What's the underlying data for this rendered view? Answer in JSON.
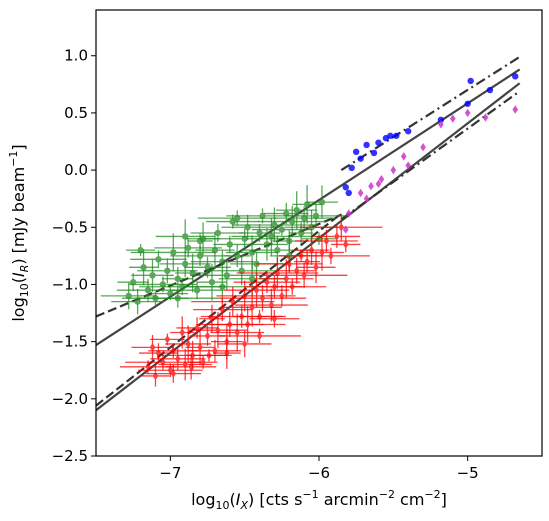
{
  "chart_data": {
    "type": "scatter",
    "xlabel": "log₁₀(I_X) [cts s⁻¹ arcmin⁻² cm⁻²]",
    "ylabel": "log₁₀(I_R) [mJy beam⁻¹]",
    "xlim": [
      -7.5,
      -4.5
    ],
    "ylim": [
      -2.5,
      1.4
    ],
    "x_ticks": [
      -7,
      -6,
      -5
    ],
    "x_tick_labels": [
      "−7",
      "−6",
      "−5"
    ],
    "y_ticks": [
      -2.5,
      -2.0,
      -1.5,
      -1.0,
      -0.5,
      0.0,
      0.5,
      1.0
    ],
    "y_tick_labels": [
      "−2.5",
      "−2.0",
      "−1.5",
      "−1.0",
      "−0.5",
      "0.0",
      "0.5",
      "1.0"
    ],
    "grid": false,
    "series": [
      {
        "color": "#228b22",
        "marker": "circle",
        "alpha": 0.75,
        "errorbars": true,
        "points": [
          [
            -7.28,
            -1.1
          ],
          [
            -7.25,
            -0.98
          ],
          [
            -7.22,
            -1.15
          ],
          [
            -7.18,
            -0.85
          ],
          [
            -7.15,
            -1.05
          ],
          [
            -7.12,
            -0.92
          ],
          [
            -7.1,
            -1.12
          ],
          [
            -7.08,
            -0.78
          ],
          [
            -7.05,
            -1.0
          ],
          [
            -7.02,
            -0.88
          ],
          [
            -7.0,
            -1.08
          ],
          [
            -6.98,
            -0.72
          ],
          [
            -6.95,
            -0.95
          ],
          [
            -6.92,
            -1.02
          ],
          [
            -6.9,
            -0.82
          ],
          [
            -6.88,
            -0.68
          ],
          [
            -6.85,
            -0.9
          ],
          [
            -6.82,
            -1.05
          ],
          [
            -6.8,
            -0.75
          ],
          [
            -6.78,
            -0.6
          ],
          [
            -6.75,
            -0.85
          ],
          [
            -6.72,
            -0.98
          ],
          [
            -6.7,
            -0.7
          ],
          [
            -6.68,
            -0.55
          ],
          [
            -6.65,
            -0.8
          ],
          [
            -6.62,
            -0.92
          ],
          [
            -6.6,
            -0.65
          ],
          [
            -6.58,
            -0.45
          ],
          [
            -6.55,
            -0.75
          ],
          [
            -6.52,
            -0.88
          ],
          [
            -6.5,
            -0.6
          ],
          [
            -6.48,
            -0.5
          ],
          [
            -6.45,
            -0.72
          ],
          [
            -6.42,
            -0.82
          ],
          [
            -6.4,
            -0.55
          ],
          [
            -6.38,
            -0.4
          ],
          [
            -6.35,
            -0.65
          ],
          [
            -6.32,
            -0.58
          ],
          [
            -6.3,
            -0.48
          ],
          [
            -6.28,
            -0.7
          ],
          [
            -6.25,
            -0.52
          ],
          [
            -6.22,
            -0.38
          ],
          [
            -6.2,
            -0.62
          ],
          [
            -6.18,
            -0.45
          ],
          [
            -6.15,
            -0.35
          ],
          [
            -6.12,
            -0.55
          ],
          [
            -6.1,
            -0.42
          ],
          [
            -6.08,
            -0.3
          ],
          [
            -6.05,
            -0.5
          ],
          [
            -6.02,
            -0.4
          ],
          [
            -5.98,
            -0.28
          ],
          [
            -6.95,
            -1.12
          ],
          [
            -6.8,
            -0.62
          ],
          [
            -6.65,
            -1.02
          ],
          [
            -6.45,
            -0.95
          ],
          [
            -6.2,
            -0.75
          ],
          [
            -6.0,
            -0.6
          ],
          [
            -7.2,
            -0.7
          ],
          [
            -6.9,
            -0.58
          ],
          [
            -6.55,
            -0.42
          ]
        ]
      },
      {
        "color": "#ff0000",
        "marker": "diamond",
        "alpha": 0.75,
        "errorbars": true,
        "points": [
          [
            -7.15,
            -1.72
          ],
          [
            -7.12,
            -1.55
          ],
          [
            -7.1,
            -1.8
          ],
          [
            -7.08,
            -1.6
          ],
          [
            -7.05,
            -1.68
          ],
          [
            -7.02,
            -1.48
          ],
          [
            -7.0,
            -1.75
          ],
          [
            -6.98,
            -1.58
          ],
          [
            -6.95,
            -1.65
          ],
          [
            -6.92,
            -1.42
          ],
          [
            -6.9,
            -1.7
          ],
          [
            -6.88,
            -1.52
          ],
          [
            -6.85,
            -1.62
          ],
          [
            -6.82,
            -1.38
          ],
          [
            -6.8,
            -1.55
          ],
          [
            -6.78,
            -1.68
          ],
          [
            -6.75,
            -1.45
          ],
          [
            -6.72,
            -1.3
          ],
          [
            -6.7,
            -1.58
          ],
          [
            -6.68,
            -1.4
          ],
          [
            -6.65,
            -1.22
          ],
          [
            -6.62,
            -1.5
          ],
          [
            -6.6,
            -1.35
          ],
          [
            -6.58,
            -1.15
          ],
          [
            -6.55,
            -1.42
          ],
          [
            -6.52,
            -1.28
          ],
          [
            -6.5,
            -1.1
          ],
          [
            -6.48,
            -1.35
          ],
          [
            -6.45,
            -1.2
          ],
          [
            -6.42,
            -1.05
          ],
          [
            -6.4,
            -1.28
          ],
          [
            -6.38,
            -1.12
          ],
          [
            -6.35,
            -0.98
          ],
          [
            -6.32,
            -1.18
          ],
          [
            -6.3,
            -1.02
          ],
          [
            -6.28,
            -0.9
          ],
          [
            -6.25,
            -1.1
          ],
          [
            -6.22,
            -0.95
          ],
          [
            -6.2,
            -0.82
          ],
          [
            -6.18,
            -1.02
          ],
          [
            -6.15,
            -0.88
          ],
          [
            -6.12,
            -0.75
          ],
          [
            -6.1,
            -0.92
          ],
          [
            -6.08,
            -0.8
          ],
          [
            -6.05,
            -0.7
          ],
          [
            -6.02,
            -0.85
          ],
          [
            -5.98,
            -0.72
          ],
          [
            -5.95,
            -0.62
          ],
          [
            -5.92,
            -0.75
          ],
          [
            -5.88,
            -0.58
          ],
          [
            -5.85,
            -0.5
          ],
          [
            -5.82,
            -0.65
          ],
          [
            -6.98,
            -1.78
          ],
          [
            -6.86,
            -1.72
          ],
          [
            -6.74,
            -1.62
          ],
          [
            -6.62,
            -1.6
          ],
          [
            -6.5,
            -1.52
          ],
          [
            -6.4,
            -1.45
          ],
          [
            -6.3,
            -1.3
          ]
        ]
      },
      {
        "color": "#0000ff",
        "marker": "circle",
        "alpha": 0.8,
        "errorbars": false,
        "points": [
          [
            -5.82,
            -0.15
          ],
          [
            -5.8,
            -0.2
          ],
          [
            -5.78,
            0.02
          ],
          [
            -5.72,
            0.1
          ],
          [
            -5.68,
            0.22
          ],
          [
            -5.63,
            0.15
          ],
          [
            -5.6,
            0.24
          ],
          [
            -5.55,
            0.28
          ],
          [
            -5.52,
            0.3
          ],
          [
            -5.48,
            0.3
          ],
          [
            -5.4,
            0.34
          ],
          [
            -5.18,
            0.44
          ],
          [
            -5.0,
            0.58
          ],
          [
            -4.98,
            0.78
          ],
          [
            -4.85,
            0.7
          ],
          [
            -4.68,
            0.82
          ],
          [
            -5.75,
            0.16
          ]
        ]
      },
      {
        "color": "#cc33cc",
        "marker": "diamond",
        "alpha": 0.85,
        "errorbars": false,
        "points": [
          [
            -5.82,
            -0.52
          ],
          [
            -5.8,
            -0.38
          ],
          [
            -5.72,
            -0.2
          ],
          [
            -5.68,
            -0.25
          ],
          [
            -5.65,
            -0.14
          ],
          [
            -5.6,
            -0.12
          ],
          [
            -5.58,
            -0.08
          ],
          [
            -5.5,
            0.0
          ],
          [
            -5.43,
            0.12
          ],
          [
            -5.4,
            0.04
          ],
          [
            -5.3,
            0.2
          ],
          [
            -5.18,
            0.4
          ],
          [
            -5.1,
            0.45
          ],
          [
            -5.0,
            0.5
          ],
          [
            -4.88,
            0.46
          ],
          [
            -4.68,
            0.53
          ]
        ]
      }
    ],
    "lines": [
      {
        "style": "solid",
        "color": "#444444",
        "width": 2.2,
        "x": [
          -7.5,
          -4.65
        ],
        "y": [
          -1.53,
          0.88
        ]
      },
      {
        "style": "solid",
        "color": "#444444",
        "width": 2.2,
        "x": [
          -7.5,
          -4.65
        ],
        "y": [
          -2.1,
          0.76
        ]
      },
      {
        "style": "dashed",
        "color": "#333333",
        "width": 2.2,
        "x": [
          -7.5,
          -5.85
        ],
        "y": [
          -1.28,
          -0.39
        ]
      },
      {
        "style": "dashed",
        "color": "#333333",
        "width": 2.2,
        "x": [
          -7.5,
          -5.85
        ],
        "y": [
          -2.06,
          -0.38
        ]
      },
      {
        "style": "dashdot",
        "color": "#333333",
        "width": 2.2,
        "x": [
          -5.85,
          -4.65
        ],
        "y": [
          0.0,
          0.99
        ]
      },
      {
        "style": "dashdot",
        "color": "#333333",
        "width": 2.2,
        "x": [
          -5.85,
          -4.65
        ],
        "y": [
          -0.43,
          0.69
        ]
      }
    ]
  }
}
